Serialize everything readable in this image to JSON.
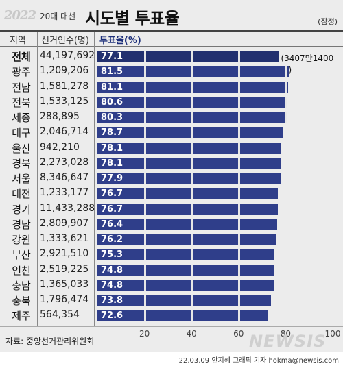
{
  "header": {
    "logo": "2022",
    "subtitle": "20대 대선",
    "title": "시도별 투표율",
    "note": "(잠정)"
  },
  "columns": {
    "region": "지역",
    "voters": "선거인수(명)",
    "rate": "투표율(%)"
  },
  "chart_data": {
    "type": "bar",
    "orientation": "horizontal",
    "categories": [
      "전체",
      "광주",
      "전남",
      "전북",
      "세종",
      "대구",
      "울산",
      "경북",
      "서울",
      "대전",
      "경기",
      "경남",
      "강원",
      "부산",
      "인천",
      "충남",
      "충북",
      "제주"
    ],
    "voters": [
      "44,197,692",
      "1,209,206",
      "1,581,278",
      "1,533,125",
      "288,895",
      "2,046,714",
      "942,210",
      "2,273,028",
      "8,346,647",
      "1,233,177",
      "11,433,288",
      "2,809,907",
      "1,333,621",
      "2,921,510",
      "2,519,225",
      "1,365,033",
      "1,796,474",
      "564,354"
    ],
    "values": [
      77.1,
      81.5,
      81.1,
      80.6,
      80.3,
      78.7,
      78.1,
      78.1,
      77.9,
      76.7,
      76.7,
      76.4,
      76.2,
      75.3,
      74.8,
      74.8,
      73.8,
      72.6
    ],
    "xlim": [
      0,
      100
    ],
    "xticks": [
      "20",
      "40",
      "60",
      "80",
      "100"
    ],
    "annotation": "(3407만1400명)",
    "ylabel": "투표율(%)"
  },
  "source": "자료: 중앙선거관리위원회",
  "watermark": "NEWSIS",
  "credit": "22.03.09 안지혜 그래픽 기자  hokma@newsis.com",
  "colors": {
    "bar": "#2f3e8a",
    "total_bar": "#22306f",
    "background": "#ececec"
  }
}
